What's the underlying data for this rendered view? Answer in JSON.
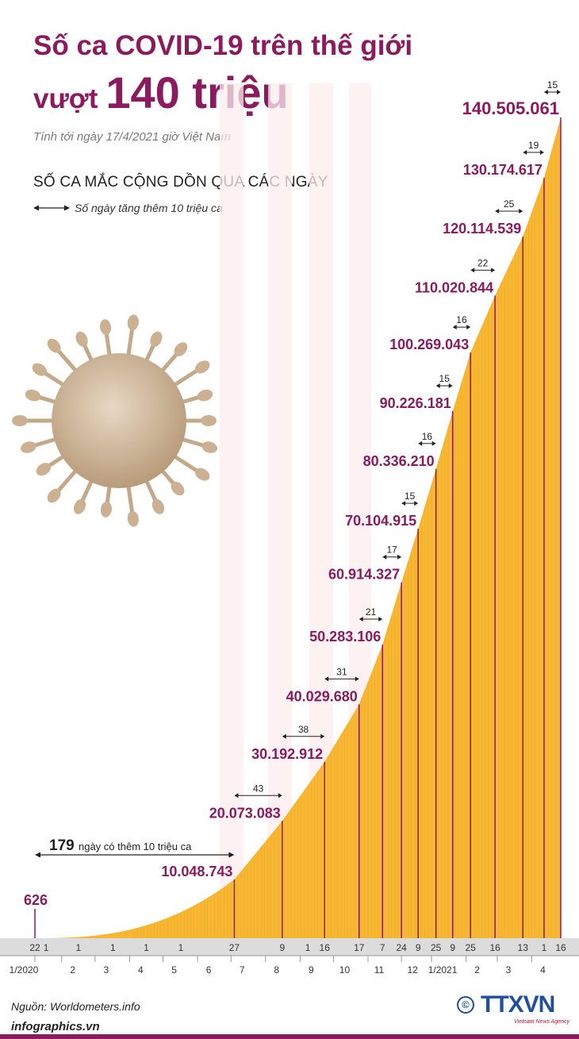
{
  "title_line1": "Số ca COVID-19 trên thế giới",
  "title_line2_prefix": "vượt",
  "title_line2_big": "140 triệu",
  "subtitle": "Tính tới ngày 17/4/2021 giờ Việt Nam",
  "section_title": "SỐ CA MẮC CỘNG DỒN QUA CÁC NGÀY",
  "legend_text": "Số ngày tăng thêm 10 triệu ca",
  "source": "Nguồn: Worldometers.info",
  "website": "infographics.vn",
  "logo_text": "TTXVN",
  "logo_sub": "Vietnam News Agency",
  "logo_copyright": "©",
  "colors": {
    "title": "#8c1a5e",
    "bar": "#f7b733",
    "milestone": "#8c1a5e",
    "logo": "#1f4fa0"
  },
  "chart_data": {
    "type": "area",
    "ylim": [
      0,
      140505061
    ],
    "first_point": {
      "label": "626",
      "value": 626,
      "day": 0
    },
    "first_span_label": "ngày có thêm 10 triệu ca",
    "milestones": [
      {
        "label": "10.048.743",
        "value": 10048743,
        "day": 179,
        "days": "179"
      },
      {
        "label": "20.073.083",
        "value": 20073083,
        "day": 222,
        "days": "43"
      },
      {
        "label": "30.192.912",
        "value": 30192912,
        "day": 260,
        "days": "38"
      },
      {
        "label": "40.029.680",
        "value": 40029680,
        "day": 291,
        "days": "31"
      },
      {
        "label": "50.283.106",
        "value": 50283106,
        "day": 312,
        "days": "21"
      },
      {
        "label": "60.914.327",
        "value": 60914327,
        "day": 329,
        "days": "17"
      },
      {
        "label": "70.104.915",
        "value": 70104915,
        "day": 344,
        "days": "15"
      },
      {
        "label": "80.336.210",
        "value": 80336210,
        "day": 360,
        "days": "16"
      },
      {
        "label": "90.226.181",
        "value": 90226181,
        "day": 375,
        "days": "15"
      },
      {
        "label": "100.269.043",
        "value": 100269043,
        "day": 391,
        "days": "16"
      },
      {
        "label": "110.020.844",
        "value": 110020844,
        "day": 413,
        "days": "22"
      },
      {
        "label": "120.114.539",
        "value": 120114539,
        "day": 438,
        "days": "25"
      },
      {
        "label": "130.174.617",
        "value": 130174617,
        "day": 457,
        "days": "19"
      },
      {
        "label": "140.505.061",
        "value": 140505061,
        "day": 472,
        "days": "15"
      }
    ],
    "day_ticks": [
      {
        "label": "22",
        "day": 0
      },
      {
        "label": "1",
        "day": 10
      },
      {
        "label": "1",
        "day": 39
      },
      {
        "label": "1",
        "day": 70
      },
      {
        "label": "1",
        "day": 100
      },
      {
        "label": "1",
        "day": 131
      },
      {
        "label": "27",
        "day": 179
      },
      {
        "label": "9",
        "day": 222
      },
      {
        "label": "1",
        "day": 245
      },
      {
        "label": "16",
        "day": 260
      },
      {
        "label": "17",
        "day": 291
      },
      {
        "label": "7",
        "day": 312
      },
      {
        "label": "24",
        "day": 329
      },
      {
        "label": "9",
        "day": 344
      },
      {
        "label": "25",
        "day": 360
      },
      {
        "label": "9",
        "day": 375
      },
      {
        "label": "25",
        "day": 391
      },
      {
        "label": "16",
        "day": 413
      },
      {
        "label": "13",
        "day": 438
      },
      {
        "label": "1",
        "day": 457
      },
      {
        "label": "16",
        "day": 472
      }
    ],
    "month_labels": [
      {
        "label": "1/2020",
        "day": 0
      },
      {
        "label": "2",
        "day": 24
      },
      {
        "label": "3",
        "day": 54
      },
      {
        "label": "4",
        "day": 85
      },
      {
        "label": "5",
        "day": 115
      },
      {
        "label": "6",
        "day": 146
      },
      {
        "label": "7",
        "day": 176
      },
      {
        "label": "8",
        "day": 207
      },
      {
        "label": "9",
        "day": 238
      },
      {
        "label": "10",
        "day": 268
      },
      {
        "label": "11",
        "day": 299
      },
      {
        "label": "12",
        "day": 329
      },
      {
        "label": "1/2021",
        "day": 356
      },
      {
        "label": "2",
        "day": 387
      },
      {
        "label": "3",
        "day": 415
      },
      {
        "label": "4",
        "day": 446
      }
    ]
  }
}
